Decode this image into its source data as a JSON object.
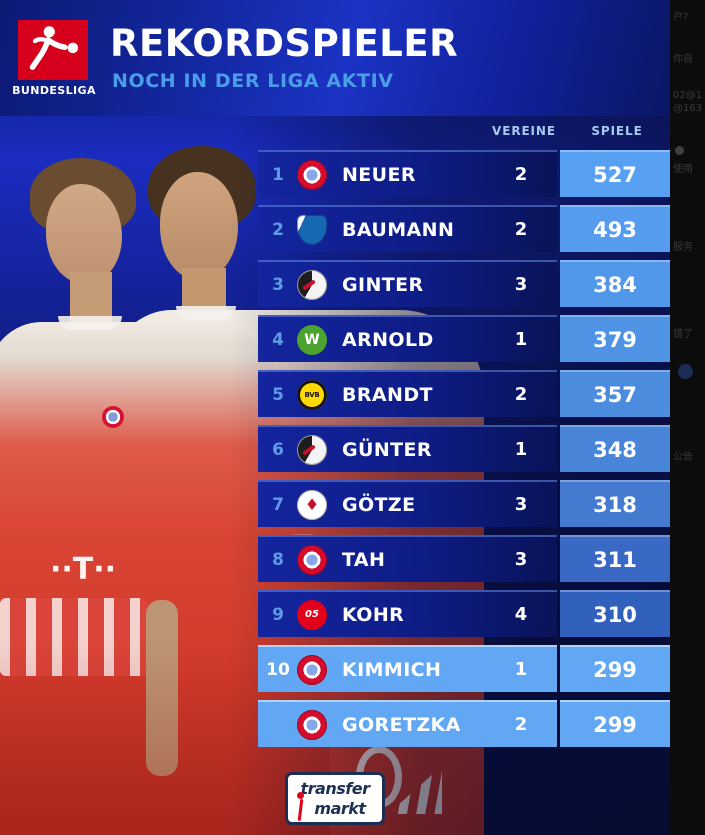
{
  "header": {
    "league": "BUNDESLIGA",
    "title": "REKORDSPIELER",
    "subtitle": "NOCH IN DER LIGA AKTIV"
  },
  "table": {
    "columns": {
      "vereine": "VEREINE",
      "spiele": "SPIELE"
    },
    "rows": [
      {
        "rank": "1",
        "club": "bayern",
        "player": "NEUER",
        "vereine": "2",
        "spiele": "527",
        "value_bg": "#58a1f2",
        "highlight": false
      },
      {
        "rank": "2",
        "club": "hoffenheim",
        "player": "BAUMANN",
        "vereine": "2",
        "spiele": "493",
        "value_bg": "#559cee",
        "highlight": false
      },
      {
        "rank": "3",
        "club": "freiburg",
        "player": "GINTER",
        "vereine": "3",
        "spiele": "384",
        "value_bg": "#5298ea",
        "highlight": false
      },
      {
        "rank": "4",
        "club": "wolfsburg",
        "player": "ARNOLD",
        "vereine": "1",
        "spiele": "379",
        "value_bg": "#4f93e5",
        "highlight": false
      },
      {
        "rank": "5",
        "club": "dortmund",
        "player": "BRANDT",
        "vereine": "2",
        "spiele": "357",
        "value_bg": "#4c8cdf",
        "highlight": false
      },
      {
        "rank": "6",
        "club": "freiburg",
        "player": "GÜNTER",
        "vereine": "1",
        "spiele": "348",
        "value_bg": "#4884d8",
        "highlight": false
      },
      {
        "rank": "7",
        "club": "frankfurt",
        "player": "GÖTZE",
        "vereine": "3",
        "spiele": "318",
        "value_bg": "#447bd0",
        "highlight": false
      },
      {
        "rank": "8",
        "club": "bayern",
        "player": "TAH",
        "vereine": "3",
        "spiele": "311",
        "value_bg": "#3969c4",
        "highlight": false
      },
      {
        "rank": "9",
        "club": "mainz",
        "player": "KOHR",
        "vereine": "4",
        "spiele": "310",
        "value_bg": "#3160bd",
        "highlight": false
      },
      {
        "rank": "10",
        "club": "bayern",
        "player": "KIMMICH",
        "vereine": "1",
        "spiele": "299",
        "value_bg": "#61a7f3",
        "highlight": true
      },
      {
        "rank": "",
        "club": "bayern",
        "player": "GORETZKA",
        "vereine": "2",
        "spiele": "299",
        "value_bg": "#61a7f3",
        "highlight": true
      }
    ]
  },
  "scene": {
    "jersey_logo_left": "··T··",
    "jersey_logo_right": "··T··"
  },
  "footer": {
    "brand_line1": "transfer",
    "brand_line2": "markt"
  },
  "side_panel": {
    "fragments": [
      "户?",
      "你自",
      "02@1",
      "@163",
      "使用",
      "服务",
      "错了",
      "公告"
    ]
  },
  "colors": {
    "bundesliga_red": "#d6001c",
    "subtitle_blue": "#4c9de8",
    "row_dark_blue": "#0e1c85",
    "highlight_blue": "#61a7f3",
    "rank_blue": "#5d9ce4"
  }
}
